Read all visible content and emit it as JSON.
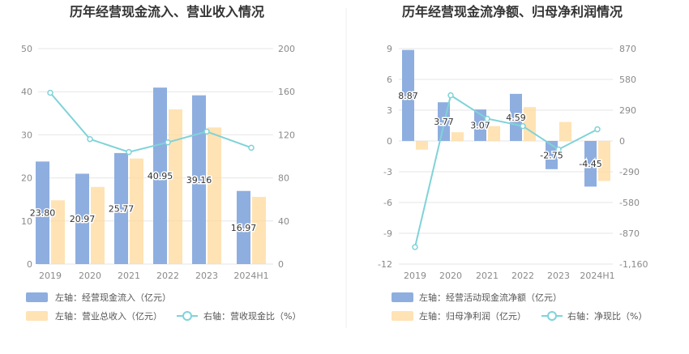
{
  "colors": {
    "bar_primary": "#8eaee0",
    "bar_secondary": "#ffd99b",
    "line": "#7fd3d8",
    "grid": "#e6e6e6",
    "axis_text": "#8a8a8a",
    "title_text": "#333333"
  },
  "chart_data": [
    {
      "type": "bar",
      "title": "历年经营现金流入、营业收入情况",
      "categories": [
        "2019",
        "2020",
        "2021",
        "2022",
        "2023",
        "2024H1"
      ],
      "y_left": {
        "range": [
          0,
          50
        ],
        "ticks": [
          "0",
          "10",
          "20",
          "30",
          "40",
          "50"
        ]
      },
      "y_right": {
        "range": [
          0,
          200
        ],
        "ticks": [
          "0",
          "40",
          "80",
          "120",
          "160",
          "200"
        ]
      },
      "grid": true,
      "legend_position": "bottom-left",
      "series": [
        {
          "name": "左轴：经营现金流入（亿元）",
          "axis": "left",
          "kind": "bar",
          "values": [
            23.8,
            20.97,
            25.77,
            40.95,
            39.16,
            16.97
          ],
          "labels": [
            "23.80",
            "20.97",
            "25.77",
            "40.95",
            "39.16",
            "16.97"
          ]
        },
        {
          "name": "左轴：营业总收入（亿元）",
          "axis": "left",
          "kind": "bar",
          "values": [
            14.8,
            17.9,
            24.5,
            35.9,
            31.7,
            15.6
          ]
        },
        {
          "name": "右轴：营收现金比（%）",
          "axis": "right",
          "kind": "line",
          "values": [
            159,
            116,
            104,
            113,
            123,
            108
          ]
        }
      ]
    },
    {
      "type": "bar",
      "title": "历年经营现金流净额、归母净利润情况",
      "categories": [
        "2019",
        "2020",
        "2021",
        "2022",
        "2023",
        "2024H1"
      ],
      "y_left": {
        "range": [
          -12,
          9
        ],
        "ticks": [
          "-12",
          "-9",
          "-6",
          "-3",
          "0",
          "3",
          "6",
          "9"
        ]
      },
      "y_right": {
        "range": [
          -1160,
          870
        ],
        "ticks": [
          "-1,160",
          "-870",
          "-580",
          "-290",
          "0",
          "290",
          "580",
          "870"
        ]
      },
      "grid": true,
      "legend_position": "bottom-left",
      "series": [
        {
          "name": "左轴：经营活动现金流净额（亿元）",
          "axis": "left",
          "kind": "bar",
          "values": [
            8.87,
            3.77,
            3.07,
            4.59,
            -2.75,
            -4.45
          ],
          "labels": [
            "8.87",
            "3.77",
            "3.07",
            "4.59",
            "-2.75",
            "-4.45"
          ]
        },
        {
          "name": "左轴：归母净利润（亿元）",
          "axis": "left",
          "kind": "bar",
          "values": [
            -0.85,
            0.85,
            1.45,
            3.3,
            1.85,
            -3.9
          ]
        },
        {
          "name": "右轴：净现比（%）",
          "axis": "right",
          "kind": "line",
          "values": [
            -1000,
            430,
            210,
            140,
            -80,
            110
          ]
        }
      ]
    }
  ]
}
